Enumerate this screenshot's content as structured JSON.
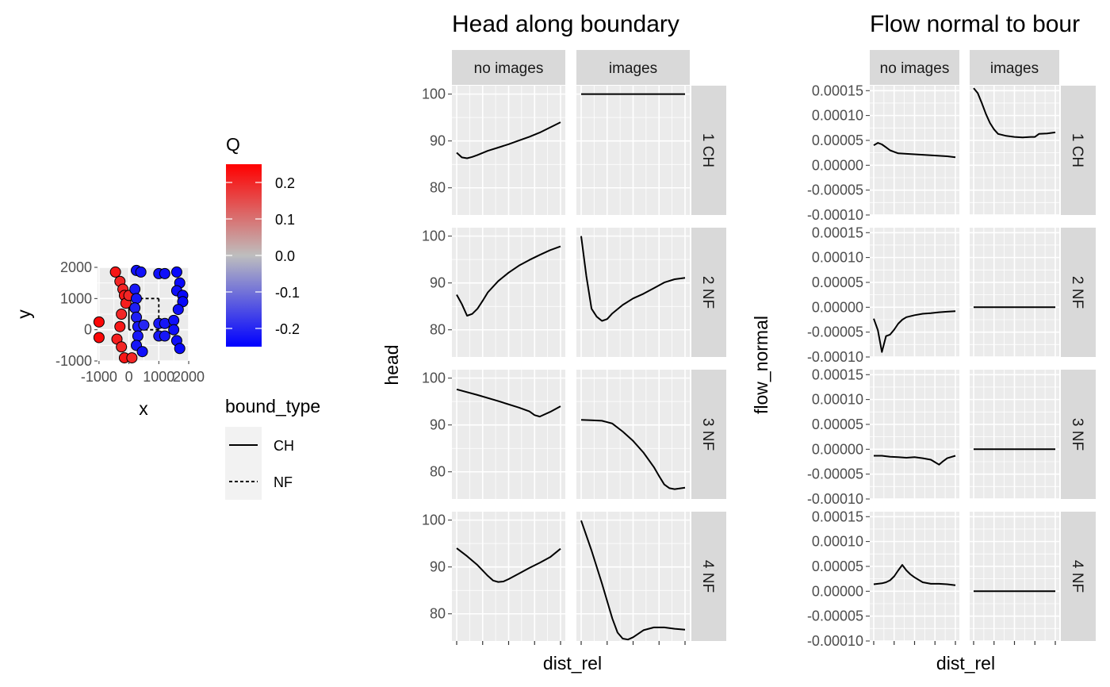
{
  "colors": {
    "panel_bg": "#EBEBEB",
    "grid_major": "#FFFFFF",
    "strip_bg": "#D9D9D9",
    "line": "#000000",
    "q_high": "#FF0000",
    "q_mid": "#BEBEBE",
    "q_low": "#0000FF"
  },
  "chart_data": [
    {
      "type": "scatter",
      "xlabel": "x",
      "ylabel": "y",
      "xlim": [
        -1000,
        2000
      ],
      "ylim": [
        -1000,
        2000
      ],
      "x_ticks": [
        "-1000",
        "0",
        "1000",
        "2000"
      ],
      "y_ticks": [
        "-1000",
        "0",
        "1000",
        "2000"
      ],
      "x_tick_values": [
        -1000,
        0,
        1000,
        2000
      ],
      "y_tick_values": [
        -1000,
        0,
        1000,
        2000
      ],
      "color_scale": {
        "title": "Q",
        "labels": [
          "0.2",
          "0.1",
          "0.0",
          "-0.1",
          "-0.2"
        ],
        "label_values": [
          0.2,
          0.1,
          0.0,
          -0.1,
          -0.2
        ],
        "range": [
          -0.25,
          0.25
        ]
      },
      "linetype_legend": {
        "title": "bound_type",
        "entries": [
          {
            "label": "CH",
            "style": "solid"
          },
          {
            "label": "NF",
            "style": "dashed"
          }
        ]
      },
      "boundaries": [
        {
          "bound_type": "CH",
          "x": [
            0,
            0
          ],
          "y": [
            0,
            1000
          ]
        },
        {
          "bound_type": "NF",
          "x": [
            0,
            1000
          ],
          "y": [
            1000,
            1000
          ]
        },
        {
          "bound_type": "NF",
          "x": [
            1000,
            1000
          ],
          "y": [
            1000,
            0
          ]
        },
        {
          "bound_type": "NF",
          "x": [
            1000,
            0
          ],
          "y": [
            0,
            0
          ]
        }
      ],
      "points": [
        {
          "x": -1000,
          "y": 250,
          "q": 0.24
        },
        {
          "x": -1000,
          "y": -250,
          "q": 0.24
        },
        {
          "x": -450,
          "y": 1850,
          "q": 0.22
        },
        {
          "x": -300,
          "y": 1550,
          "q": 0.2
        },
        {
          "x": -200,
          "y": 1300,
          "q": 0.2
        },
        {
          "x": -150,
          "y": 1100,
          "q": 0.22
        },
        {
          "x": -100,
          "y": 850,
          "q": 0.21
        },
        {
          "x": -250,
          "y": 500,
          "q": 0.2
        },
        {
          "x": -300,
          "y": 100,
          "q": 0.22
        },
        {
          "x": -400,
          "y": -300,
          "q": 0.21
        },
        {
          "x": -250,
          "y": -550,
          "q": 0.2
        },
        {
          "x": -150,
          "y": -900,
          "q": 0.22
        },
        {
          "x": 100,
          "y": -900,
          "q": 0.2
        },
        {
          "x": 0,
          "y": 1100,
          "q": 0.2
        },
        {
          "x": 250,
          "y": 1900,
          "q": -0.23
        },
        {
          "x": 400,
          "y": 1850,
          "q": -0.23
        },
        {
          "x": 200,
          "y": 1300,
          "q": -0.22
        },
        {
          "x": 250,
          "y": 1000,
          "q": -0.22
        },
        {
          "x": 200,
          "y": 700,
          "q": -0.21
        },
        {
          "x": 250,
          "y": 400,
          "q": -0.21
        },
        {
          "x": 300,
          "y": 100,
          "q": -0.22
        },
        {
          "x": 300,
          "y": -200,
          "q": -0.22
        },
        {
          "x": 250,
          "y": -500,
          "q": -0.22
        },
        {
          "x": 450,
          "y": -700,
          "q": -0.23
        },
        {
          "x": 500,
          "y": 150,
          "q": -0.2
        },
        {
          "x": 1000,
          "y": 1800,
          "q": -0.23
        },
        {
          "x": 1200,
          "y": 1800,
          "q": -0.23
        },
        {
          "x": 1000,
          "y": 200,
          "q": -0.22
        },
        {
          "x": 1000,
          "y": -200,
          "q": -0.22
        },
        {
          "x": 1200,
          "y": 200,
          "q": -0.22
        },
        {
          "x": 1200,
          "y": -200,
          "q": -0.22
        },
        {
          "x": 1600,
          "y": 1850,
          "q": -0.24
        },
        {
          "x": 1700,
          "y": 1500,
          "q": -0.24
        },
        {
          "x": 1600,
          "y": 1250,
          "q": -0.23
        },
        {
          "x": 1800,
          "y": 1100,
          "q": -0.24
        },
        {
          "x": 1800,
          "y": 900,
          "q": -0.24
        },
        {
          "x": 1650,
          "y": 650,
          "q": -0.23
        },
        {
          "x": 1500,
          "y": 300,
          "q": -0.23
        },
        {
          "x": 1500,
          "y": 0,
          "q": -0.23
        },
        {
          "x": 1600,
          "y": -350,
          "q": -0.23
        },
        {
          "x": 1700,
          "y": -600,
          "q": -0.24
        }
      ]
    },
    {
      "type": "line",
      "title": "Head along boundary",
      "xlabel": "dist_rel",
      "ylabel": "head",
      "ylim": [
        74.2,
        101.8
      ],
      "y_ticks": [
        80,
        90,
        100
      ],
      "x_ticks": [
        0,
        0.25,
        0.5,
        0.75,
        1
      ],
      "columns": [
        "no images",
        "images"
      ],
      "rows": [
        "1 CH",
        "2 NF",
        "3 NF",
        "4 NF"
      ],
      "panels": [
        {
          "row": "1 CH",
          "col": "no images",
          "x": [
            0,
            0.05,
            0.1,
            0.15,
            0.2,
            0.3,
            0.4,
            0.5,
            0.6,
            0.7,
            0.8,
            0.9,
            1
          ],
          "y": [
            87.5,
            86.5,
            86.3,
            86.6,
            87,
            87.9,
            88.6,
            89.3,
            90.1,
            90.9,
            91.8,
            92.9,
            94
          ]
        },
        {
          "row": "1 CH",
          "col": "images",
          "x": [
            0,
            1
          ],
          "y": [
            100,
            100
          ]
        },
        {
          "row": "2 NF",
          "col": "no images",
          "x": [
            0,
            0.05,
            0.1,
            0.15,
            0.2,
            0.25,
            0.3,
            0.4,
            0.5,
            0.6,
            0.7,
            0.8,
            0.9,
            1
          ],
          "y": [
            87.5,
            85.5,
            83,
            83.4,
            84.5,
            86.2,
            88,
            90.4,
            92.2,
            93.7,
            94.9,
            96,
            97,
            97.8
          ]
        },
        {
          "row": "2 NF",
          "col": "images",
          "x": [
            0,
            0.05,
            0.1,
            0.15,
            0.2,
            0.25,
            0.3,
            0.4,
            0.5,
            0.6,
            0.7,
            0.8,
            0.9,
            1
          ],
          "y": [
            100,
            91.5,
            84.5,
            82.8,
            81.9,
            82.3,
            83.5,
            85.3,
            86.7,
            87.7,
            88.9,
            90.1,
            90.8,
            91.1
          ]
        },
        {
          "row": "3 NF",
          "col": "no images",
          "x": [
            0,
            0.2,
            0.4,
            0.6,
            0.7,
            0.75,
            0.8,
            0.9,
            1
          ],
          "y": [
            97.6,
            96.4,
            95.1,
            93.7,
            92.9,
            92.1,
            91.8,
            92.8,
            94
          ]
        },
        {
          "row": "3 NF",
          "col": "images",
          "x": [
            0,
            0.1,
            0.2,
            0.3,
            0.4,
            0.5,
            0.6,
            0.7,
            0.75,
            0.8,
            0.85,
            0.9,
            1
          ],
          "y": [
            91.1,
            91,
            90.9,
            90.3,
            88.6,
            86.6,
            84.1,
            81,
            79.1,
            77.3,
            76.5,
            76.3,
            76.6
          ]
        },
        {
          "row": "4 NF",
          "col": "no images",
          "x": [
            0,
            0.1,
            0.2,
            0.3,
            0.35,
            0.4,
            0.45,
            0.5,
            0.6,
            0.7,
            0.8,
            0.9,
            1
          ],
          "y": [
            94,
            92.3,
            90.4,
            88.1,
            87.1,
            86.8,
            86.9,
            87.4,
            88.6,
            89.8,
            90.9,
            92.1,
            93.9
          ]
        },
        {
          "row": "4 NF",
          "col": "images",
          "x": [
            0,
            0.1,
            0.2,
            0.3,
            0.35,
            0.4,
            0.45,
            0.5,
            0.6,
            0.7,
            0.8,
            0.9,
            1
          ],
          "y": [
            99.9,
            93.5,
            86.5,
            79,
            76,
            74.7,
            74.5,
            75,
            76.5,
            77.1,
            77.1,
            76.8,
            76.6
          ]
        }
      ]
    },
    {
      "type": "line",
      "title": "Flow normal to bour",
      "xlabel": "dist_rel",
      "ylabel": "flow_normal",
      "ylim": [
        -0.0001,
        0.00016
      ],
      "y_ticks": [
        0.00015,
        0.0001,
        5e-05,
        0,
        -5e-05,
        -0.0001
      ],
      "y_tick_labels": [
        "0.00015",
        "0.00010",
        "0.00005",
        "0.00000",
        "-0.00005",
        "-0.00010"
      ],
      "x_ticks": [
        0,
        0.25,
        0.5,
        0.75,
        1
      ],
      "columns": [
        "no images",
        "images"
      ],
      "rows": [
        "1 CH",
        "2 NF",
        "3 NF",
        "4 NF"
      ],
      "panels": [
        {
          "row": "1 CH",
          "col": "no images",
          "x": [
            0,
            0.05,
            0.1,
            0.15,
            0.2,
            0.25,
            0.3,
            0.4,
            0.5,
            0.6,
            0.7,
            0.8,
            0.9,
            1
          ],
          "y": [
            4e-05,
            4.5e-05,
            4.2e-05,
            3.6e-05,
            3e-05,
            2.7e-05,
            2.4e-05,
            2.3e-05,
            2.2e-05,
            2.1e-05,
            2e-05,
            1.9e-05,
            1.8e-05,
            1.6e-05
          ]
        },
        {
          "row": "1 CH",
          "col": "images",
          "x": [
            0,
            0.05,
            0.1,
            0.15,
            0.2,
            0.25,
            0.3,
            0.4,
            0.5,
            0.6,
            0.7,
            0.75,
            0.8,
            0.9,
            1
          ],
          "y": [
            0.000155,
            0.000145,
            0.000125,
            0.000103,
            8.5e-05,
            7.2e-05,
            6.3e-05,
            5.9e-05,
            5.7e-05,
            5.6e-05,
            5.7e-05,
            5.7e-05,
            6.3e-05,
            6.4e-05,
            6.6e-05
          ]
        },
        {
          "row": "2 NF",
          "col": "no images",
          "x": [
            0,
            0.05,
            0.1,
            0.15,
            0.2,
            0.25,
            0.3,
            0.35,
            0.4,
            0.5,
            0.6,
            0.7,
            0.8,
            0.9,
            1
          ],
          "y": [
            -2.3e-05,
            -4.6e-05,
            -9e-05,
            -5.8e-05,
            -5.5e-05,
            -4.5e-05,
            -3.3e-05,
            -2.5e-05,
            -2e-05,
            -1.6e-05,
            -1.3e-05,
            -1.2e-05,
            -1e-05,
            -9e-06,
            -8e-06
          ]
        },
        {
          "row": "2 NF",
          "col": "images",
          "x": [
            0,
            1
          ],
          "y": [
            0,
            0
          ]
        },
        {
          "row": "3 NF",
          "col": "no images",
          "x": [
            0,
            0.1,
            0.2,
            0.3,
            0.4,
            0.5,
            0.6,
            0.7,
            0.75,
            0.8,
            0.85,
            0.9,
            1
          ],
          "y": [
            -1.3e-05,
            -1.3e-05,
            -1.5e-05,
            -1.6e-05,
            -1.7e-05,
            -1.6e-05,
            -1.8e-05,
            -2.1e-05,
            -2.6e-05,
            -3.1e-05,
            -2.4e-05,
            -1.8e-05,
            -1.3e-05
          ]
        },
        {
          "row": "3 NF",
          "col": "images",
          "x": [
            0,
            1
          ],
          "y": [
            0,
            0
          ]
        },
        {
          "row": "4 NF",
          "col": "no images",
          "x": [
            0,
            0.1,
            0.15,
            0.2,
            0.25,
            0.3,
            0.35,
            0.4,
            0.45,
            0.5,
            0.6,
            0.7,
            0.8,
            0.9,
            1
          ],
          "y": [
            1.4e-05,
            1.6e-05,
            1.8e-05,
            2.2e-05,
            3e-05,
            4.2e-05,
            5.3e-05,
            4.2e-05,
            3.4e-05,
            2.8e-05,
            1.8e-05,
            1.5e-05,
            1.5e-05,
            1.4e-05,
            1.2e-05
          ]
        },
        {
          "row": "4 NF",
          "col": "images",
          "x": [
            0,
            1
          ],
          "y": [
            0,
            0
          ]
        }
      ]
    }
  ]
}
